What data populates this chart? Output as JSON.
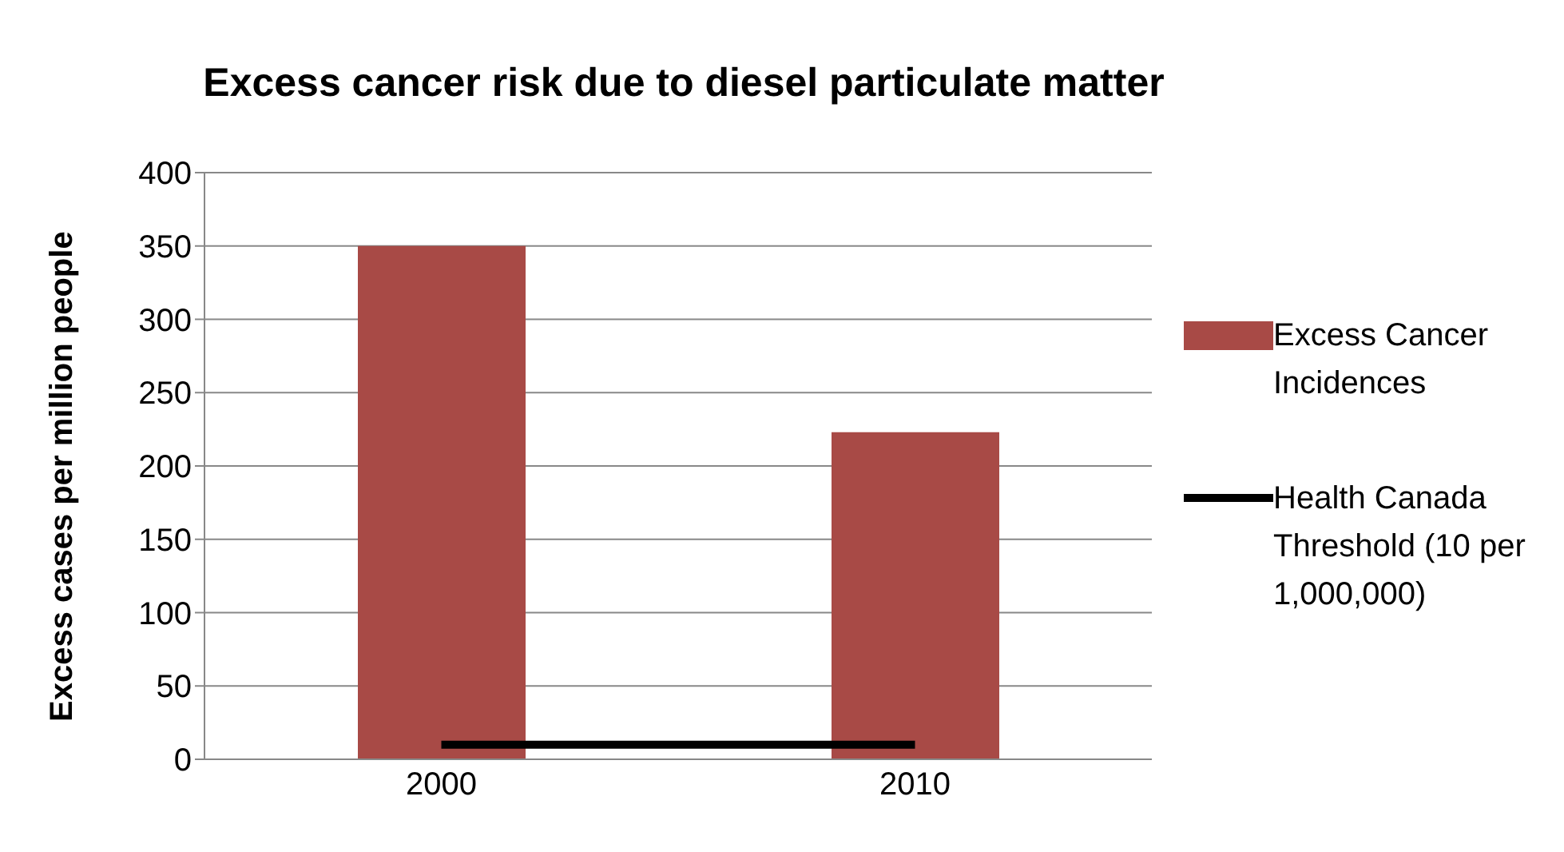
{
  "chart_data": {
    "type": "bar",
    "title": "Excess cancer risk due to diesel particulate matter",
    "ylabel": "Excess cases per million people",
    "categories": [
      "2000",
      "2010"
    ],
    "series": [
      {
        "name": "Excess Cancer Incidences",
        "color": "#a84a46",
        "values": [
          350,
          223
        ]
      },
      {
        "name": "Health Canada Threshold (10 per 1,000,000)",
        "type": "line",
        "color": "#000000",
        "values": [
          10,
          10
        ]
      }
    ],
    "ylim": [
      0,
      400
    ],
    "yticks": [
      0,
      50,
      100,
      150,
      200,
      250,
      300,
      350,
      400
    ],
    "grid": "y",
    "legend": "right",
    "marker": "none"
  }
}
